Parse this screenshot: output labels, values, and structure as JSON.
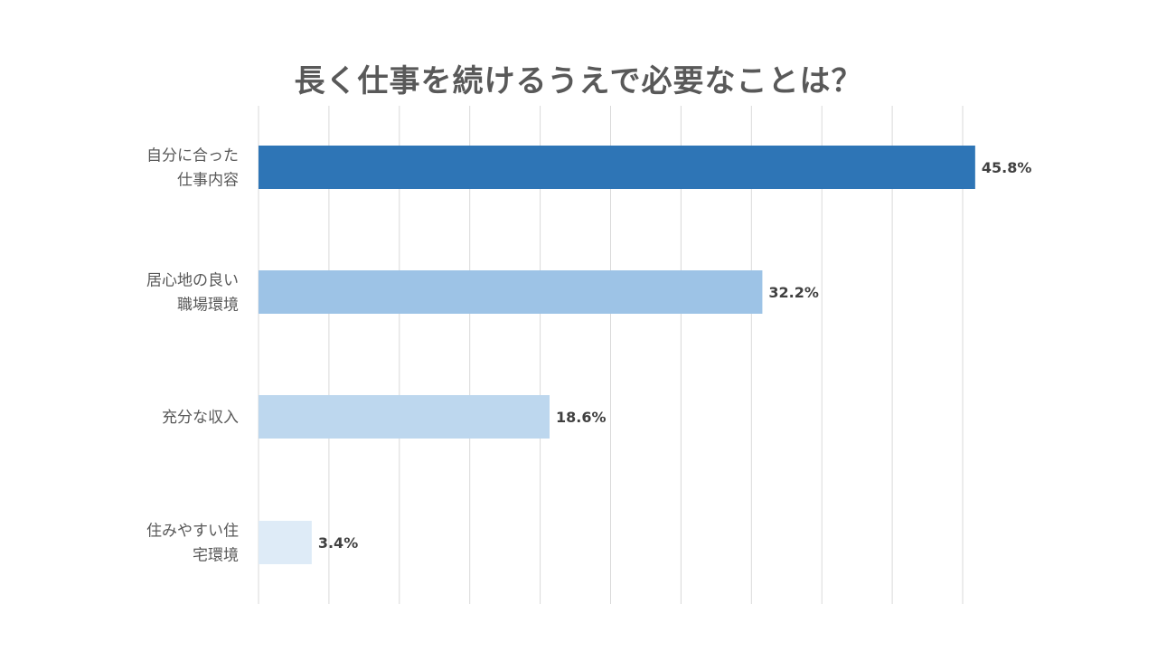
{
  "chart_data": {
    "type": "bar",
    "orientation": "horizontal",
    "title": "長く仕事を続けるうえで必要なことは？",
    "categories": [
      [
        "自分に合った",
        "仕事内容"
      ],
      [
        "居心地の良い",
        "職場環境"
      ],
      [
        "充分な収入"
      ],
      [
        "住みやすい住",
        "宅環境"
      ]
    ],
    "values": [
      45.8,
      32.2,
      18.6,
      3.4
    ],
    "value_labels": [
      "45.8%",
      "32.2%",
      "18.6%",
      "3.4%"
    ],
    "bar_colors": [
      "#2E75B6",
      "#9DC3E6",
      "#BDD7EE",
      "#DEEBF7"
    ],
    "xlim": [
      0,
      45
    ],
    "x_gridlines": 10,
    "grid": true,
    "legend": false,
    "xlabel": "",
    "ylabel": ""
  }
}
